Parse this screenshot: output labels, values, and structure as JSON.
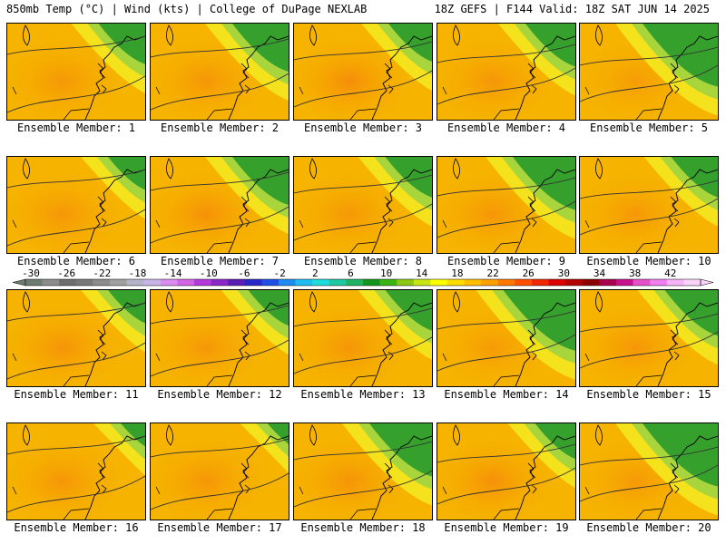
{
  "header": {
    "left": "850mb Temp (°C) | Wind (kts) | College of DuPage NEXLAB",
    "right": "18Z GEFS | F144 Valid: 18Z SAT JUN 14 2025"
  },
  "members": [
    {
      "label": "Ensemble Member: 1",
      "green": 0.45,
      "hot": 0.25
    },
    {
      "label": "Ensemble Member: 2",
      "green": 0.6,
      "hot": 0.3
    },
    {
      "label": "Ensemble Member: 3",
      "green": 0.4,
      "hot": 0.55
    },
    {
      "label": "Ensemble Member: 4",
      "green": 0.5,
      "hot": 0.3
    },
    {
      "label": "Ensemble Member: 5",
      "green": 0.9,
      "hot": 0.1
    },
    {
      "label": "Ensemble Member: 6",
      "green": 0.3,
      "hot": 0.3
    },
    {
      "label": "Ensemble Member: 7",
      "green": 0.6,
      "hot": 0.45
    },
    {
      "label": "Ensemble Member: 8",
      "green": 0.45,
      "hot": 0.25
    },
    {
      "label": "Ensemble Member: 9",
      "green": 0.7,
      "hot": 0.3
    },
    {
      "label": "Ensemble Member: 10",
      "green": 0.45,
      "hot": 0.25
    },
    {
      "label": "Ensemble Member: 11",
      "green": 0.3,
      "hot": 0.35
    },
    {
      "label": "Ensemble Member: 12",
      "green": 0.35,
      "hot": 0.25
    },
    {
      "label": "Ensemble Member: 13",
      "green": 0.45,
      "hot": 0.3
    },
    {
      "label": "Ensemble Member: 14",
      "green": 0.85,
      "hot": 0.15
    },
    {
      "label": "Ensemble Member: 15",
      "green": 0.55,
      "hot": 0.3
    },
    {
      "label": "Ensemble Member: 16",
      "green": 0.1,
      "hot": 0.3
    },
    {
      "label": "Ensemble Member: 17",
      "green": 0.05,
      "hot": 0.3
    },
    {
      "label": "Ensemble Member: 18",
      "green": 0.7,
      "hot": 0.35
    },
    {
      "label": "Ensemble Member: 19",
      "green": 0.35,
      "hot": 0.45
    },
    {
      "label": "Ensemble Member: 20",
      "green": 0.9,
      "hot": 0.2
    }
  ],
  "colorbar": {
    "ticks": [
      "-30",
      "-26",
      "-22",
      "-18",
      "-14",
      "-10",
      "-6",
      "-2",
      "2",
      "6",
      "10",
      "14",
      "18",
      "22",
      "26",
      "30",
      "34",
      "38",
      "42"
    ],
    "colors": [
      "#6e7b70",
      "#8c8c8c",
      "#6e6e6e",
      "#787878",
      "#8c8c8c",
      "#a0a0a0",
      "#b4b4c8",
      "#c8b4e6",
      "#dc8cf0",
      "#d264e6",
      "#b43cdc",
      "#8c28c8",
      "#5a1eb4",
      "#2828c8",
      "#1e50e6",
      "#1e8cf0",
      "#1ebef0",
      "#1edcdc",
      "#1ec8a0",
      "#1eb464",
      "#14961e",
      "#3cb414",
      "#8cc814",
      "#c8e614",
      "#ffff00",
      "#ffdc00",
      "#ffbe00",
      "#ffa000",
      "#ff7800",
      "#ff5000",
      "#f02800",
      "#dc0000",
      "#b40000",
      "#8c0000",
      "#aa0050",
      "#c8148c",
      "#e650c8",
      "#f07ef0",
      "#f5b4f5",
      "#fad2fa"
    ]
  }
}
